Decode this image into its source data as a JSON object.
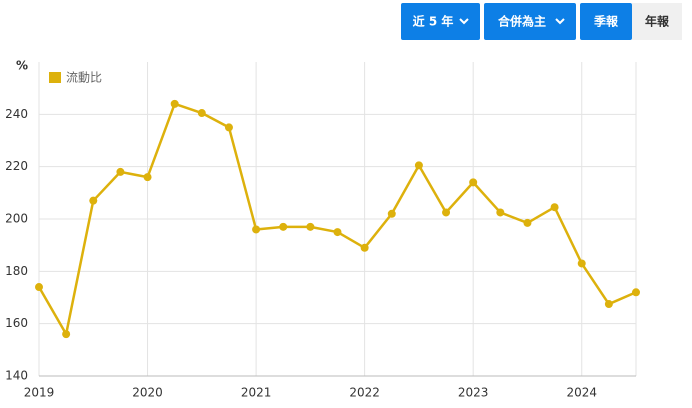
{
  "controls": {
    "period": "近 5 年",
    "consolidation": "合併為主",
    "quarterly": "季報",
    "annual": "年報"
  },
  "chart_data": {
    "type": "line",
    "y_label": "%",
    "x": [
      2019,
      2019.25,
      2019.5,
      2019.75,
      2020,
      2020.25,
      2020.5,
      2020.75,
      2021,
      2021.25,
      2021.5,
      2021.75,
      2022,
      2022.25,
      2022.5,
      2022.75,
      2023,
      2023.25,
      2023.5,
      2023.75,
      2024,
      2024.25,
      2024.5
    ],
    "series": [
      {
        "name": "流動比",
        "color": "#ddb10c",
        "values": [
          174,
          156,
          207,
          218,
          216,
          244,
          240.5,
          235,
          196,
          197,
          197,
          195,
          189,
          202,
          220.5,
          202.5,
          214,
          202.5,
          198.5,
          204.5,
          183,
          167.5,
          172
        ]
      }
    ],
    "xlim": [
      2019,
      2024.5
    ],
    "ylim": [
      140,
      260
    ],
    "xticks": [
      2019,
      2020,
      2021,
      2022,
      2023,
      2024
    ],
    "yticks": [
      140,
      160,
      180,
      200,
      220,
      240
    ],
    "grid": true,
    "legend": "top-left"
  }
}
